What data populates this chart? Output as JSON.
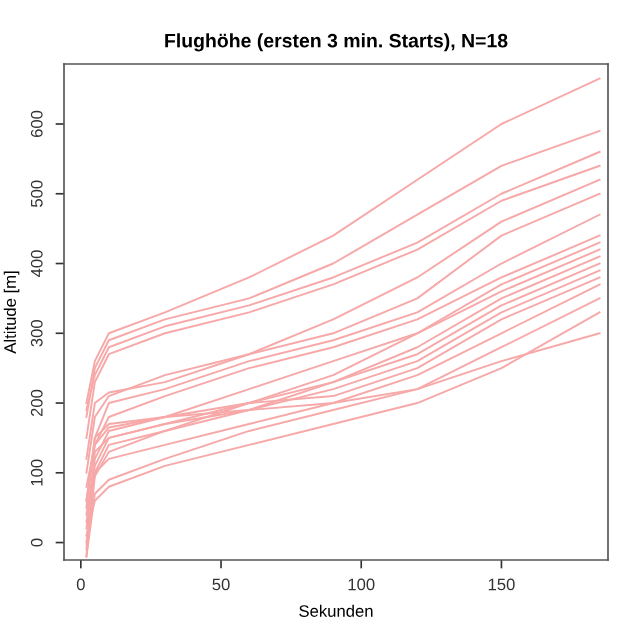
{
  "chart_data": {
    "type": "line",
    "title": "Flughöhe (ersten 3 min. Starts), N=18",
    "xlabel": "Sekunden",
    "ylabel": "Altitude [m]",
    "x": [
      2,
      5,
      10,
      30,
      60,
      90,
      120,
      150,
      185
    ],
    "xlim": [
      -6,
      188
    ],
    "ylim": [
      -25,
      686
    ],
    "xticks": [
      0,
      50,
      100,
      150
    ],
    "yticks": [
      0,
      100,
      200,
      300,
      400,
      500,
      600
    ],
    "grid": false,
    "legend": false,
    "series": [
      {
        "color": "#f7a8a8",
        "values": [
          200,
          260,
          300,
          330,
          380,
          440,
          520,
          600,
          665
        ]
      },
      {
        "color": "#f7a8a8",
        "values": [
          180,
          250,
          290,
          320,
          350,
          400,
          470,
          540,
          590
        ]
      },
      {
        "color": "#f7a8a8",
        "values": [
          190,
          240,
          280,
          310,
          340,
          380,
          430,
          500,
          560
        ]
      },
      {
        "color": "#f7a8a8",
        "values": [
          150,
          230,
          270,
          300,
          330,
          370,
          420,
          490,
          540
        ]
      },
      {
        "color": "#f7a8a8",
        "values": [
          120,
          200,
          215,
          230,
          270,
          320,
          380,
          460,
          520
        ]
      },
      {
        "color": "#f7a8a8",
        "values": [
          100,
          180,
          210,
          240,
          270,
          300,
          350,
          440,
          500
        ]
      },
      {
        "color": "#f7a8a8",
        "values": [
          60,
          150,
          200,
          220,
          260,
          290,
          330,
          400,
          470
        ]
      },
      {
        "color": "#f7a8a8",
        "values": [
          80,
          140,
          180,
          210,
          250,
          280,
          320,
          380,
          440
        ]
      },
      {
        "color": "#f7a8a8",
        "values": [
          40,
          120,
          160,
          180,
          220,
          260,
          300,
          370,
          430
        ]
      },
      {
        "color": "#f7a8a8",
        "values": [
          20,
          110,
          150,
          170,
          200,
          240,
          300,
          360,
          420
        ]
      },
      {
        "color": "#f7a8a8",
        "values": [
          0,
          100,
          140,
          160,
          200,
          230,
          280,
          350,
          410
        ]
      },
      {
        "color": "#f7a8a8",
        "values": [
          -20,
          95,
          130,
          160,
          190,
          230,
          270,
          340,
          400
        ]
      },
      {
        "color": "#f7a8a8",
        "values": [
          -10,
          130,
          150,
          170,
          190,
          220,
          260,
          330,
          390
        ]
      },
      {
        "color": "#f7a8a8",
        "values": [
          60,
          140,
          165,
          180,
          200,
          210,
          250,
          320,
          380
        ]
      },
      {
        "color": "#f7a8a8",
        "values": [
          30,
          100,
          120,
          140,
          170,
          200,
          240,
          300,
          370
        ]
      },
      {
        "color": "#f7a8a8",
        "values": [
          -20,
          70,
          90,
          120,
          160,
          190,
          220,
          280,
          350
        ]
      },
      {
        "color": "#f7a8a8",
        "values": [
          10,
          60,
          80,
          110,
          140,
          170,
          200,
          250,
          330
        ]
      },
      {
        "color": "#f7a8a8",
        "values": [
          50,
          150,
          170,
          180,
          190,
          200,
          220,
          260,
          300
        ]
      }
    ]
  }
}
